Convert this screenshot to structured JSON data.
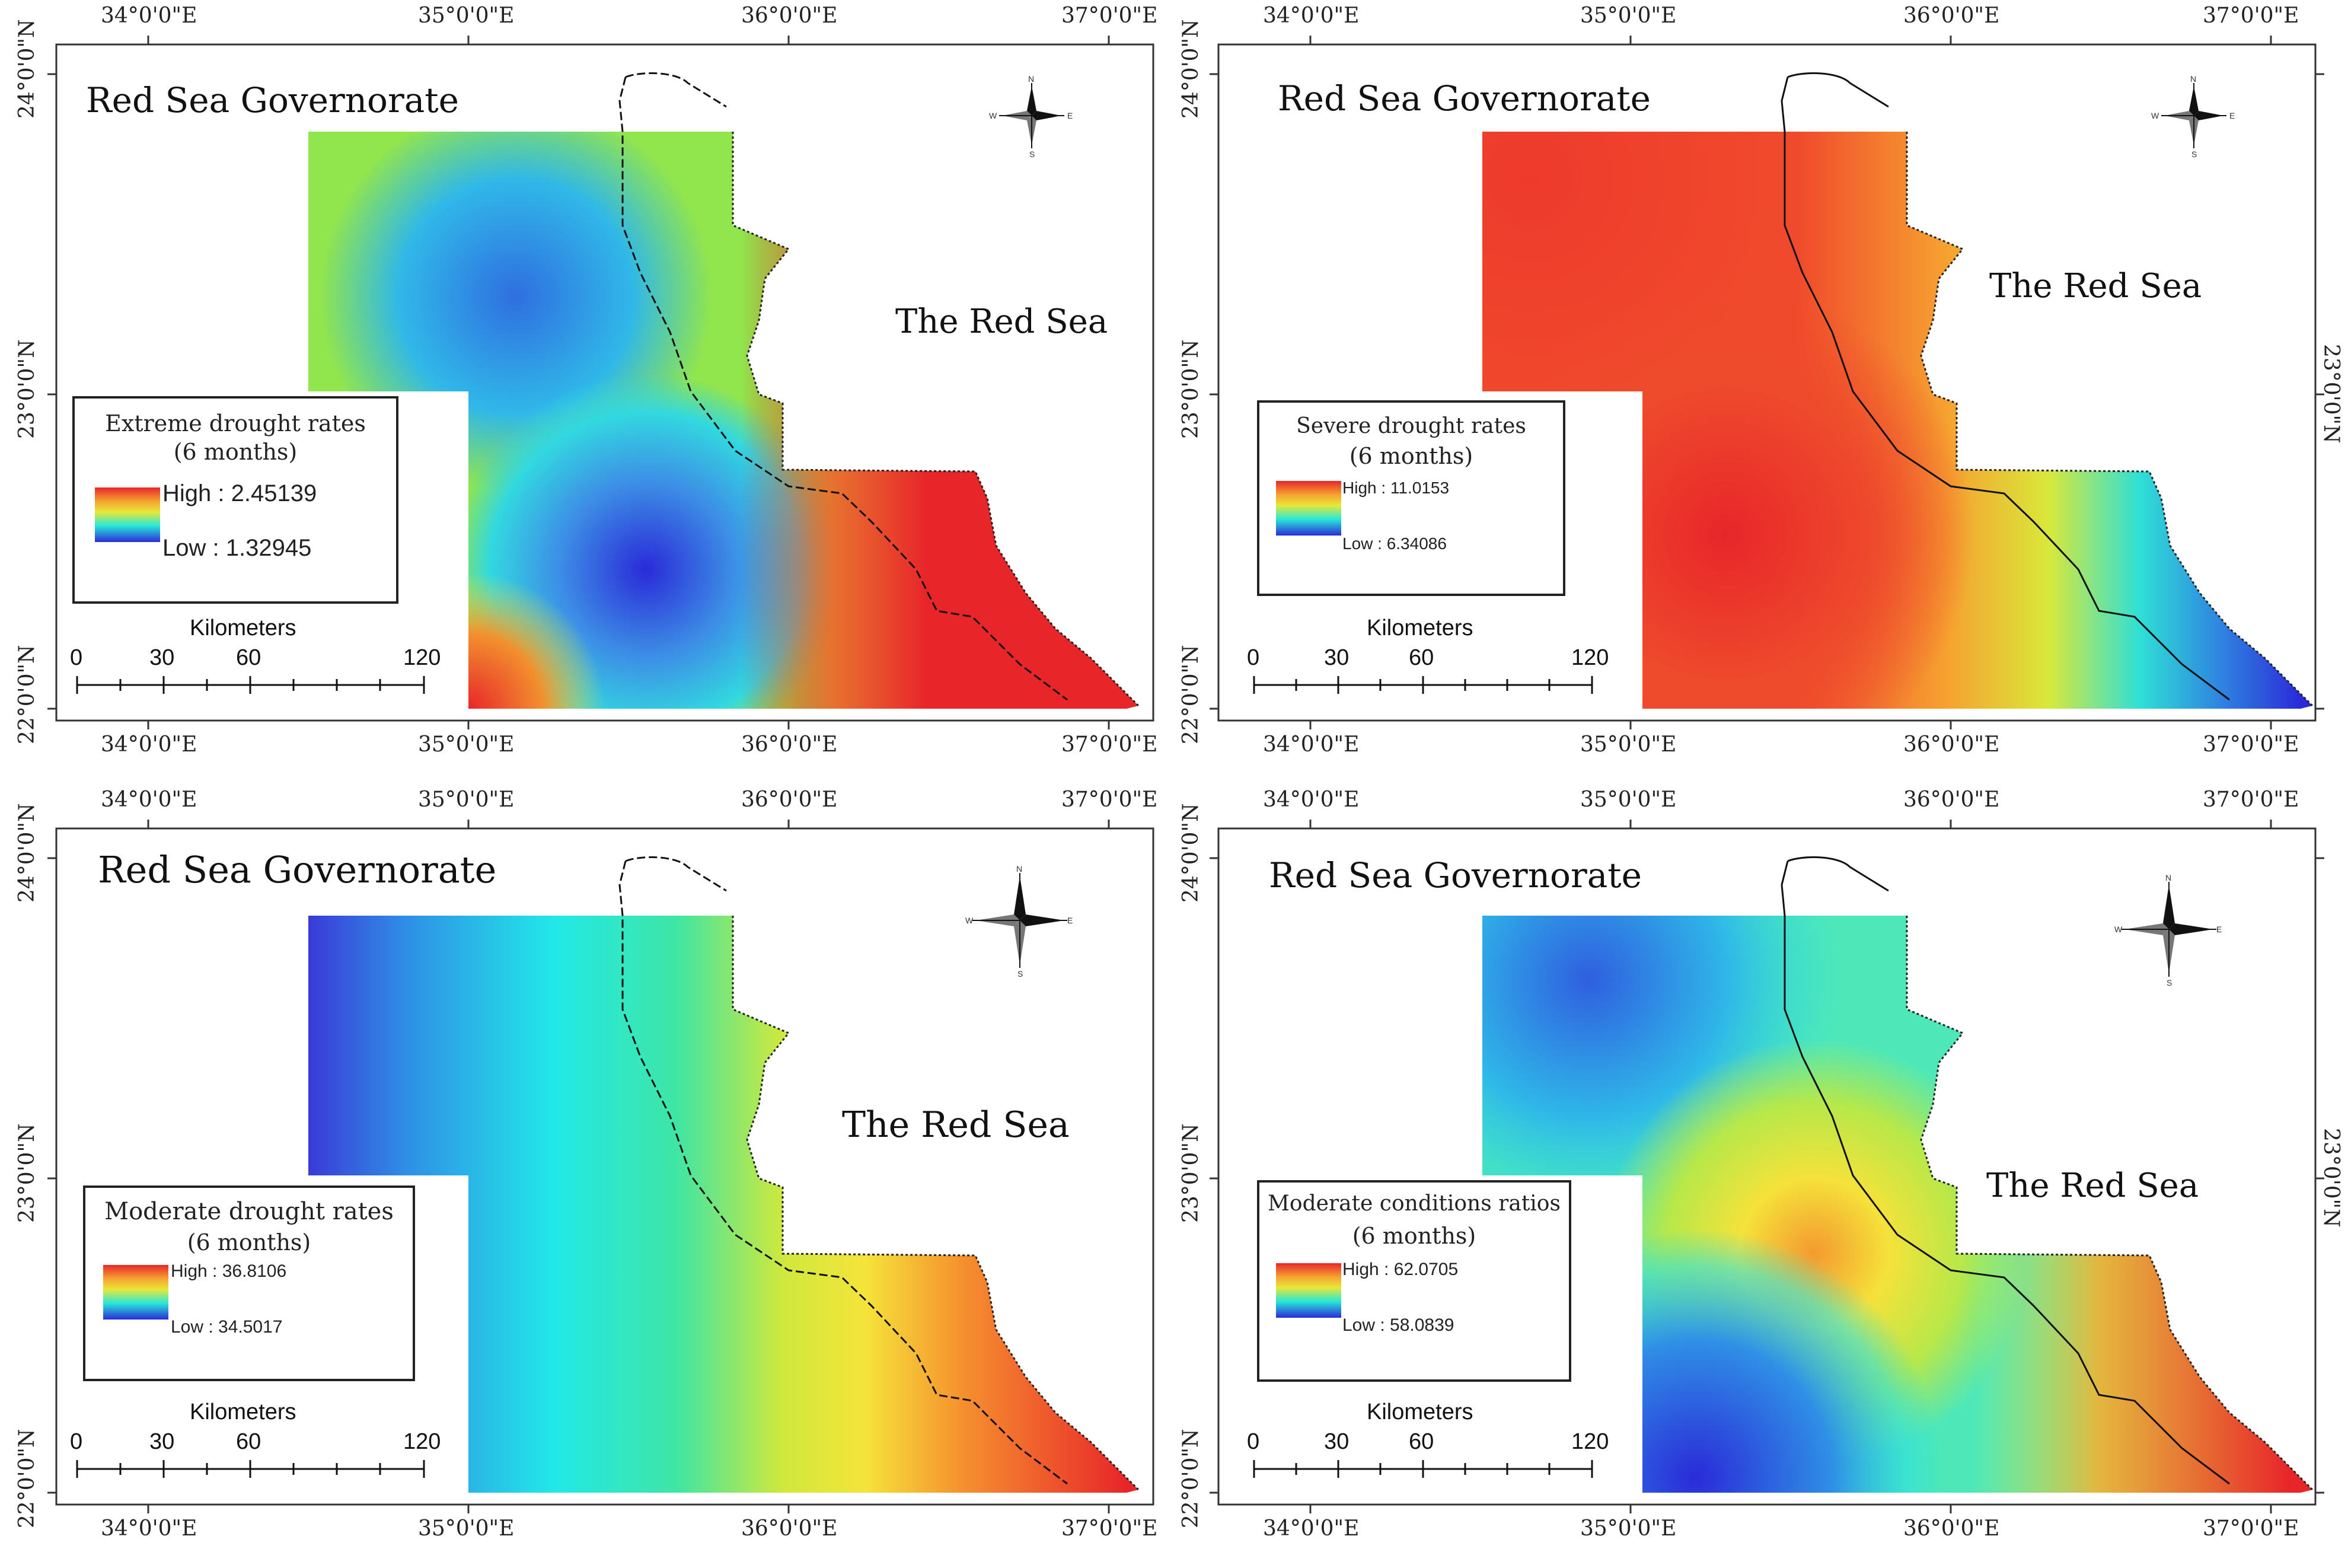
{
  "axes": {
    "lon_labels": [
      "34°0'0\"E",
      "35°0'0\"E",
      "36°0'0\"E",
      "37°0'0\"E"
    ],
    "lat_labels": [
      "24°0'0\"N",
      "23°0'0\"N",
      "22°0'0\"N"
    ]
  },
  "governorate_label": "Red Sea Governorate",
  "sea_label": "The Red Sea",
  "scale_bar": {
    "title": "Kilometers",
    "ticks": [
      "0",
      "30",
      "60",
      "120"
    ]
  },
  "compass": {
    "n": "N",
    "s": "S",
    "e": "E",
    "w": "W"
  },
  "panels": [
    {
      "legend_title": "Extreme drought rates",
      "legend_period": "(6 months)",
      "high": "High : 2.45139",
      "low": "Low : 1.32945"
    },
    {
      "legend_title": "Severe drought rates",
      "legend_period": "(6 months)",
      "high": "High : 11.0153",
      "low": "Low : 6.34086"
    },
    {
      "legend_title": "Moderate drought rates",
      "legend_period": "(6 months)",
      "high": "High : 36.8106",
      "low": "Low : 34.5017"
    },
    {
      "legend_title": "Moderate conditions ratios",
      "legend_period": "(6 months)",
      "high": "High : 62.0705",
      "low": "Low : 58.0839"
    }
  ],
  "colors": {
    "high": "#e8262a",
    "orange": "#f6a230",
    "yellow": "#e8e838",
    "cyan": "#28e9d7",
    "low": "#2a2bd8"
  }
}
